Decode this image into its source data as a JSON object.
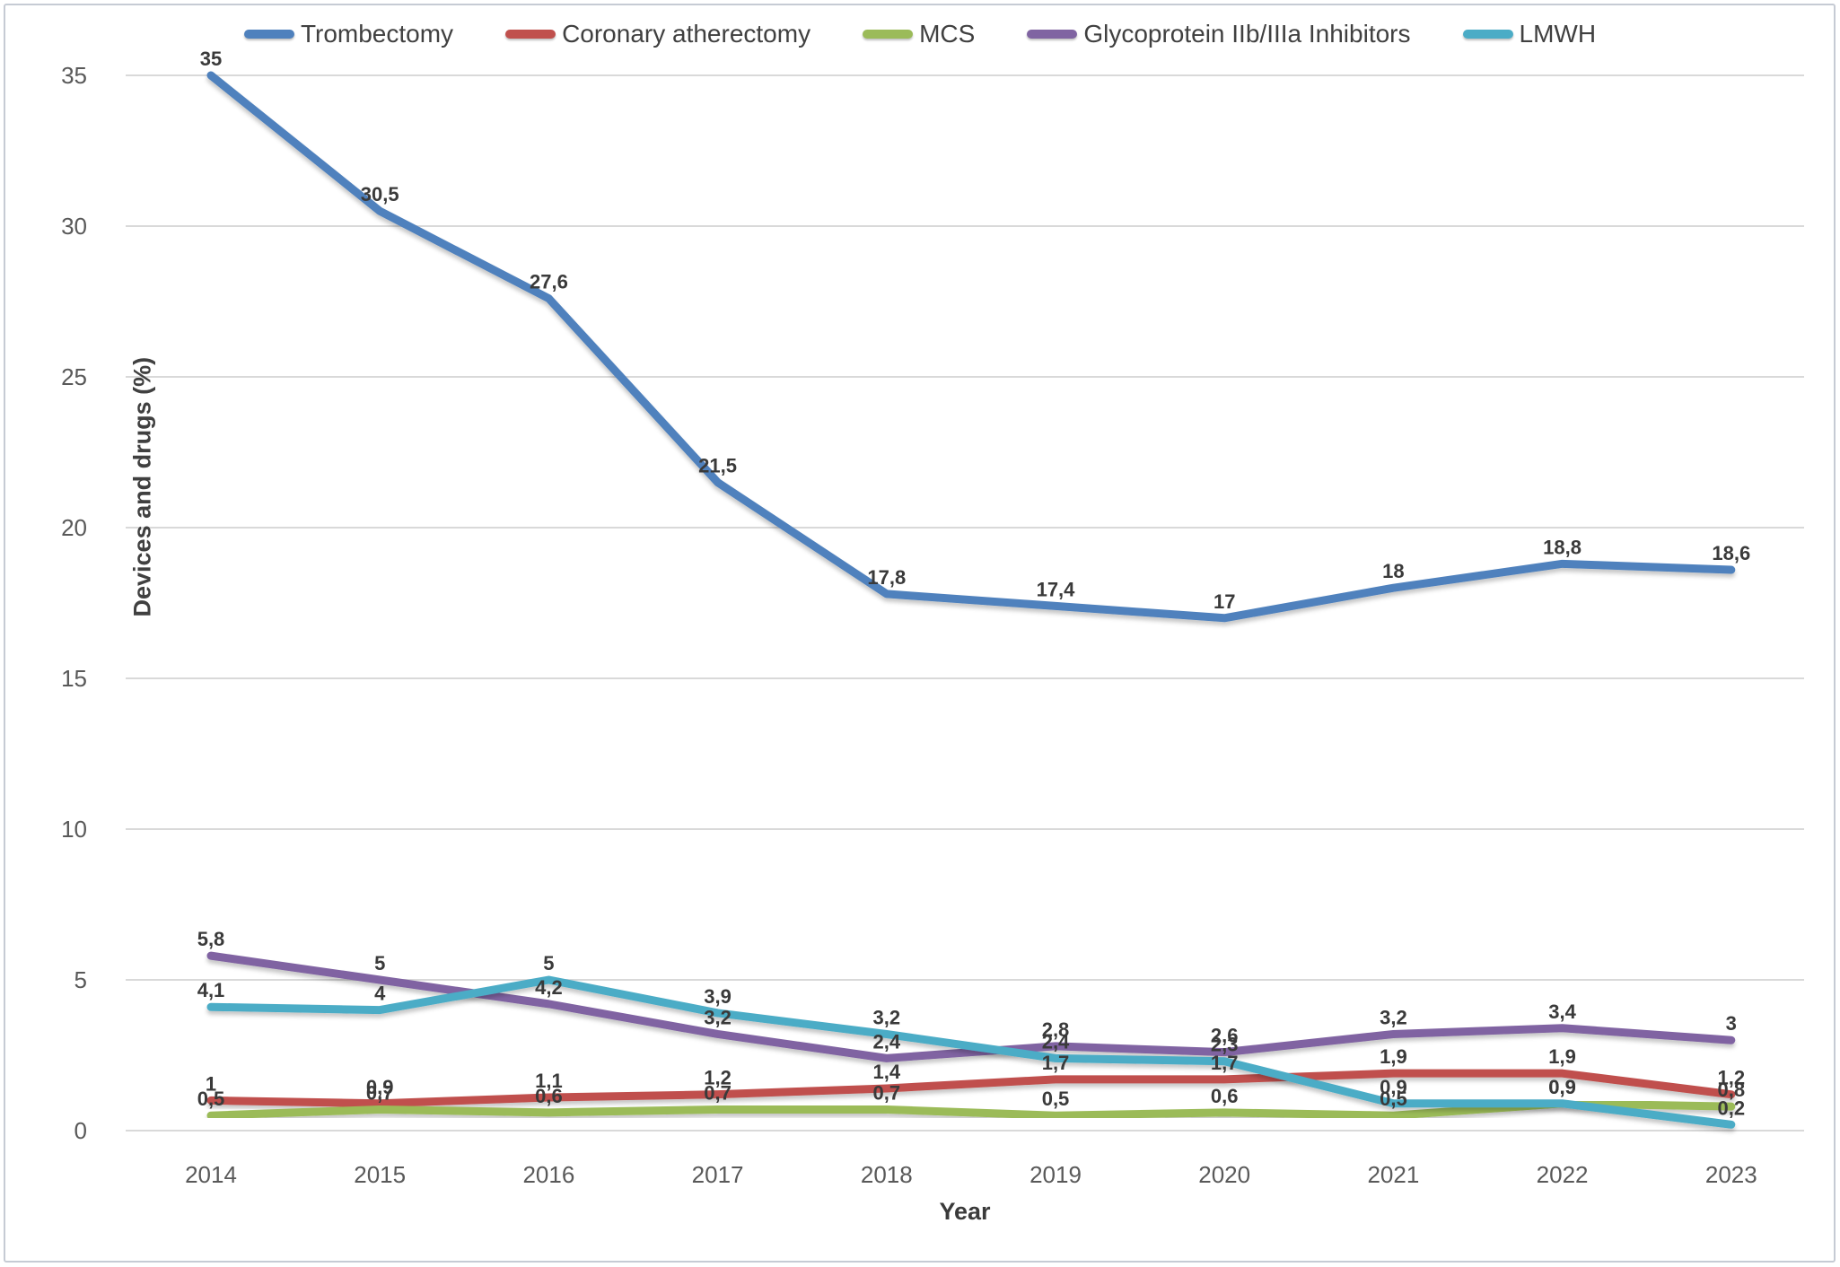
{
  "frame": {
    "border_color": "#c6cbd4",
    "background": "#ffffff"
  },
  "chart_data": {
    "type": "line",
    "title": "",
    "xlabel": "Year",
    "ylabel": "Devices and drugs (%)",
    "categories": [
      2014,
      2015,
      2016,
      2017,
      2018,
      2019,
      2020,
      2021,
      2022,
      2023
    ],
    "ylim": [
      0,
      35
    ],
    "yticks": [
      0,
      5,
      10,
      15,
      20,
      25,
      30,
      35
    ],
    "grid": "horizontal-only",
    "gridline_color": "#d9d9d9",
    "tick_label_color": "#595959",
    "data_label_color": "#3a3a3a",
    "legend_position": "top",
    "decimal_separator": ",",
    "series": [
      {
        "name": "Trombectomy",
        "color": "#4F81BD",
        "values": [
          35,
          30.5,
          27.6,
          21.5,
          17.8,
          17.4,
          17,
          18,
          18.8,
          18.6
        ],
        "labels": [
          "35",
          "30,5",
          "27,6",
          "21,5",
          "17,8",
          "17,4",
          "17",
          "18",
          "18,8",
          "18,6"
        ]
      },
      {
        "name": "Coronary atherectomy",
        "color": "#C0504D",
        "values": [
          1,
          0.9,
          1.1,
          1.2,
          1.4,
          1.7,
          1.7,
          1.9,
          1.9,
          1.2
        ],
        "labels": [
          "1",
          "0,9",
          "1,1",
          "1,2",
          "1,4",
          "1,7",
          "1,7",
          "1,9",
          "1,9",
          "1,2"
        ]
      },
      {
        "name": "MCS",
        "color": "#9BBB59",
        "values": [
          0.5,
          0.7,
          0.6,
          0.7,
          0.7,
          0.5,
          0.6,
          0.5,
          0.9,
          0.8
        ],
        "labels": [
          "0,5",
          "0,7",
          "0,6",
          "0,7",
          "0,7",
          "0,5",
          "0,6",
          "0,5",
          "0,9",
          "0,8"
        ]
      },
      {
        "name": "Glycoprotein IIb/IIIa Inhibitors",
        "color": "#8064A2",
        "values": [
          5.8,
          5,
          4.2,
          3.2,
          2.4,
          2.8,
          2.6,
          3.2,
          3.4,
          3
        ],
        "labels": [
          "5,8",
          "5",
          "4,2",
          "3,2",
          "2,4",
          "2,8",
          "2,6",
          "3,2",
          "3,4",
          "3"
        ]
      },
      {
        "name": "LMWH",
        "color": "#4BACC6",
        "values": [
          4.1,
          4,
          5,
          3.9,
          3.2,
          2.4,
          2.3,
          0.9,
          0.9,
          0.2
        ],
        "labels": [
          "4,1",
          "4",
          "5",
          "3,9",
          "3,2",
          "2,4",
          "2,3",
          "0,9",
          "0,9",
          "0,2"
        ]
      }
    ]
  }
}
